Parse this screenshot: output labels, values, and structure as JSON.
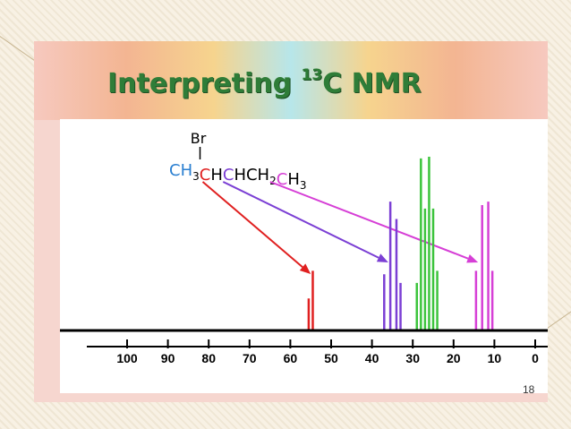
{
  "slide": {
    "title_text": "Interpreting ",
    "title_sup": "13",
    "title_tail": "C NMR",
    "page_number": "18"
  },
  "molecule": {
    "substituent": "Br",
    "groups": [
      {
        "text": "CH",
        "sub": "3",
        "color": "#2a7fd1"
      },
      {
        "text": "C",
        "sub": "",
        "color": "#e02020"
      },
      {
        "text": "H",
        "sub": "",
        "color": "#000000"
      },
      {
        "text": "C",
        "sub": "",
        "color": "#7b3fd4"
      },
      {
        "text": "HCH",
        "sub": "2",
        "color": "#000000"
      },
      {
        "text": "C",
        "sub": "",
        "color": "#d63fd6"
      },
      {
        "text": "H",
        "sub": "3",
        "color": "#000000"
      }
    ]
  },
  "chart_data": {
    "type": "bar",
    "xlabel": "",
    "ylabel": "",
    "xlim": [
      100,
      0
    ],
    "x_ticks": [
      "100",
      "90",
      "80",
      "70",
      "60",
      "50",
      "40",
      "30",
      "20",
      "10",
      "0"
    ],
    "series": [
      {
        "color": "#e02020",
        "peaks": [
          [
            55.5,
            0.18
          ],
          [
            54.5,
            0.34
          ]
        ]
      },
      {
        "color": "#7b3fd4",
        "peaks": [
          [
            37,
            0.32
          ],
          [
            35.5,
            0.74
          ],
          [
            34,
            0.64
          ],
          [
            33,
            0.27
          ]
        ]
      },
      {
        "color": "#3cc43c",
        "peaks": [
          [
            29,
            0.27
          ],
          [
            28,
            0.99
          ],
          [
            27,
            0.7
          ],
          [
            26,
            1.0
          ],
          [
            25,
            0.7
          ],
          [
            24,
            0.34
          ]
        ]
      },
      {
        "color": "#d63fd6",
        "peaks": [
          [
            14.5,
            0.34
          ],
          [
            13,
            0.72
          ],
          [
            11.5,
            0.74
          ],
          [
            10.5,
            0.34
          ]
        ]
      }
    ]
  },
  "arrows": [
    {
      "color": "#e02020",
      "from_group": 1,
      "to_peak": 55
    },
    {
      "color": "#7b3fd4",
      "from_group": 3,
      "to_peak": 36
    },
    {
      "color": "#d63fd6",
      "from_group": 5,
      "to_peak": 14
    }
  ]
}
